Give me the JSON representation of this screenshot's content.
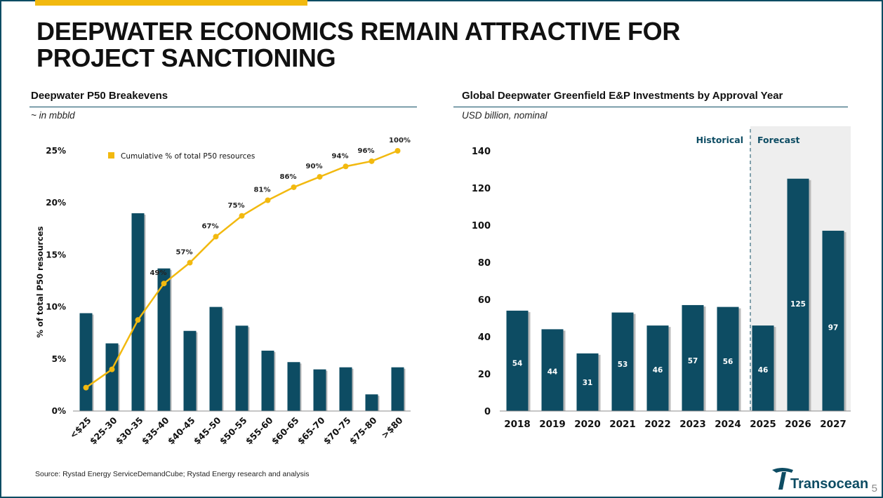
{
  "slide": {
    "title_line1": "DEEPWATER ECONOMICS REMAIN ATTRACTIVE FOR",
    "title_line2": "PROJECT SANCTIONING",
    "source": "Source: Rystad Energy ServiceDemandCube; Rystad Energy research and analysis",
    "page_number": "5",
    "logo_text": "Transocean",
    "colors": {
      "bar": "#0d4c63",
      "line": "#f2b90f",
      "forecast_bg": "#eeeeee",
      "frame": "#0d4c63"
    }
  },
  "left_panel": {
    "heading": "Deepwater P50 Breakevens",
    "subtitle": "~ in mbbld"
  },
  "right_panel": {
    "heading": "Global Deepwater Greenfield E&P Investments by Approval Year",
    "subtitle": "USD billion, nominal"
  },
  "chart_data": [
    {
      "type": "bar",
      "categories": [
        "<$25",
        "$25-30",
        "$30-35",
        "$35-40",
        "$40-45",
        "$45-50",
        "$50-55",
        "$55-60",
        "$60-65",
        "$65-70",
        "$70-75",
        "$75-80",
        ">$80"
      ],
      "values": [
        9.4,
        6.5,
        19.0,
        13.7,
        7.7,
        10.0,
        8.2,
        5.8,
        4.7,
        4.0,
        4.2,
        1.6,
        4.2
      ],
      "ylim": [
        0,
        25
      ],
      "yticks": [
        "0%",
        "5%",
        "10%",
        "15%",
        "20%",
        "25%"
      ],
      "ylabel": "% of total P50 resources",
      "line_series": {
        "name": "Cumulative % of total P50 resources",
        "values": [
          9,
          16,
          35,
          49,
          57,
          67,
          75,
          81,
          86,
          90,
          94,
          96,
          100
        ],
        "data_labels": [
          "",
          "",
          "",
          "49%",
          "57%",
          "67%",
          "75%",
          "81%",
          "86%",
          "90%",
          "94%",
          "96%",
          "100%"
        ]
      },
      "legend_position": "top-left",
      "grid": false
    },
    {
      "type": "bar",
      "categories": [
        "2018",
        "2019",
        "2020",
        "2021",
        "2022",
        "2023",
        "2024",
        "2025",
        "2026",
        "2027"
      ],
      "values": [
        54,
        44,
        31,
        53,
        46,
        57,
        56,
        46,
        125,
        97
      ],
      "data_labels": [
        "54",
        "44",
        "31",
        "53",
        "46",
        "57",
        "56",
        "46",
        "125",
        "97"
      ],
      "ylim": [
        0,
        140
      ],
      "yticks": [
        "0",
        "20",
        "40",
        "60",
        "80",
        "100",
        "120",
        "140"
      ],
      "zones": {
        "historical_label": "Historical",
        "forecast_label": "Forecast",
        "forecast_start_index": 7
      },
      "grid": false
    }
  ]
}
